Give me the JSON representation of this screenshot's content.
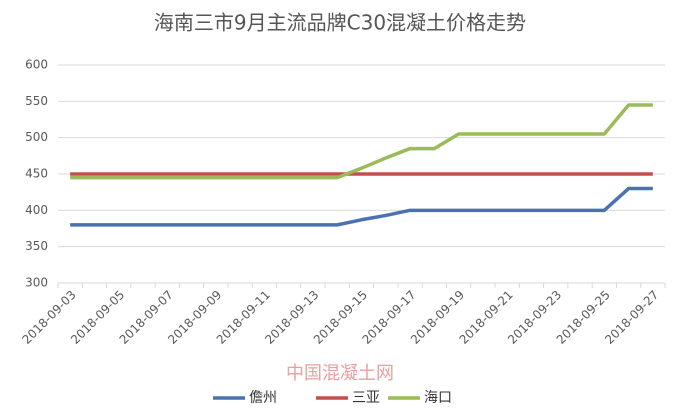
{
  "chart_data": {
    "type": "line",
    "title": "海南三市9月主流品牌C30混凝土价格走势",
    "watermark": "中国混凝土网",
    "categories": [
      "2018-09-03",
      null,
      "2018-09-05",
      null,
      "2018-09-07",
      null,
      "2018-09-09",
      null,
      "2018-09-11",
      null,
      "2018-09-13",
      null,
      "2018-09-15",
      null,
      "2018-09-17",
      null,
      "2018-09-19",
      null,
      "2018-09-21",
      null,
      "2018-09-23",
      null,
      "2018-09-25",
      null,
      "2018-09-27"
    ],
    "series": [
      {
        "name": "儋州",
        "color": "#4a72b0",
        "values": [
          380,
          380,
          380,
          380,
          380,
          380,
          380,
          380,
          380,
          380,
          380,
          380,
          387,
          393,
          400,
          400,
          400,
          400,
          400,
          400,
          400,
          400,
          400,
          430,
          430
        ]
      },
      {
        "name": "三亚",
        "color": "#c0504d",
        "values": [
          450,
          450,
          450,
          450,
          450,
          450,
          450,
          450,
          450,
          450,
          450,
          450,
          450,
          450,
          450,
          450,
          450,
          450,
          450,
          450,
          450,
          450,
          450,
          450,
          450
        ]
      },
      {
        "name": "海口",
        "color": "#9bbb59",
        "values": [
          445,
          445,
          445,
          445,
          445,
          445,
          445,
          445,
          445,
          445,
          445,
          445,
          458,
          472,
          485,
          485,
          505,
          505,
          505,
          505,
          505,
          505,
          505,
          545,
          545
        ]
      }
    ],
    "ylim": [
      300,
      600
    ],
    "yticks": [
      300,
      350,
      400,
      450,
      500,
      550,
      600
    ],
    "grid": true,
    "legend": "bottom"
  }
}
